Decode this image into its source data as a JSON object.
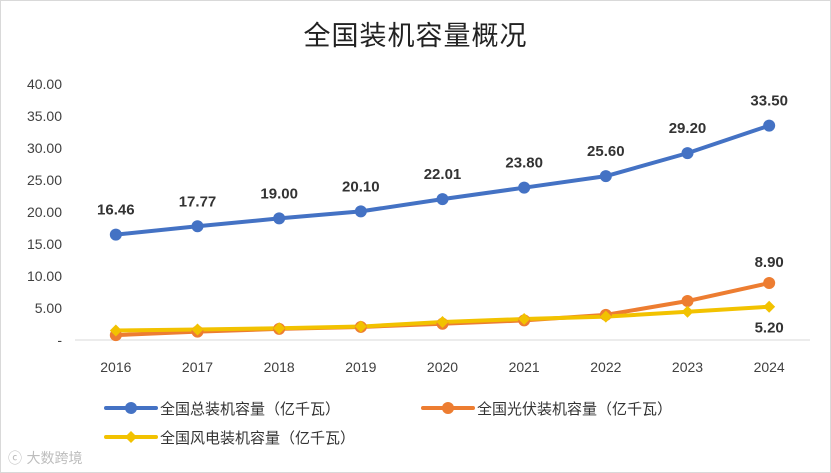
{
  "chart_data": {
    "type": "line",
    "title": "全国装机容量概况",
    "categories": [
      "2016",
      "2017",
      "2018",
      "2019",
      "2020",
      "2021",
      "2022",
      "2023",
      "2024"
    ],
    "ylim": [
      0,
      40
    ],
    "y_ticks": [
      {
        "value": 0,
        "label": "-"
      },
      {
        "value": 5,
        "label": "5.00"
      },
      {
        "value": 10,
        "label": "10.00"
      },
      {
        "value": 15,
        "label": "15.00"
      },
      {
        "value": 20,
        "label": "20.00"
      },
      {
        "value": 25,
        "label": "25.00"
      },
      {
        "value": 30,
        "label": "30.00"
      },
      {
        "value": 35,
        "label": "35.00"
      },
      {
        "value": 40,
        "label": "40.00"
      }
    ],
    "grid": false,
    "legend_position": "bottom",
    "series": [
      {
        "name": "全国总装机容量（亿千瓦）",
        "color": "#4472c4",
        "marker": "circle",
        "values": [
          16.46,
          17.77,
          19.0,
          20.1,
          22.01,
          23.8,
          25.6,
          29.2,
          33.5
        ],
        "labels": [
          "16.46",
          "17.77",
          "19.00",
          "20.10",
          "22.01",
          "23.80",
          "25.60",
          "29.20",
          "33.50"
        ]
      },
      {
        "name": "全国光伏装机容量（亿千瓦）",
        "color": "#ed7d31",
        "marker": "circle",
        "values": [
          0.77,
          1.3,
          1.74,
          2.04,
          2.53,
          3.06,
          3.93,
          6.09,
          8.9
        ],
        "labels": [
          "",
          "",
          "",
          "",
          "",
          "",
          "",
          "",
          "8.90"
        ]
      },
      {
        "name": "全国风电装机容量（亿千瓦）",
        "color": "#f2c200",
        "marker": "diamond",
        "values": [
          1.49,
          1.64,
          1.84,
          2.1,
          2.82,
          3.28,
          3.65,
          4.41,
          5.2
        ],
        "labels": [
          "",
          "",
          "",
          "",
          "",
          "",
          "",
          "",
          "5.20"
        ]
      }
    ]
  },
  "watermark": "大数跨境"
}
